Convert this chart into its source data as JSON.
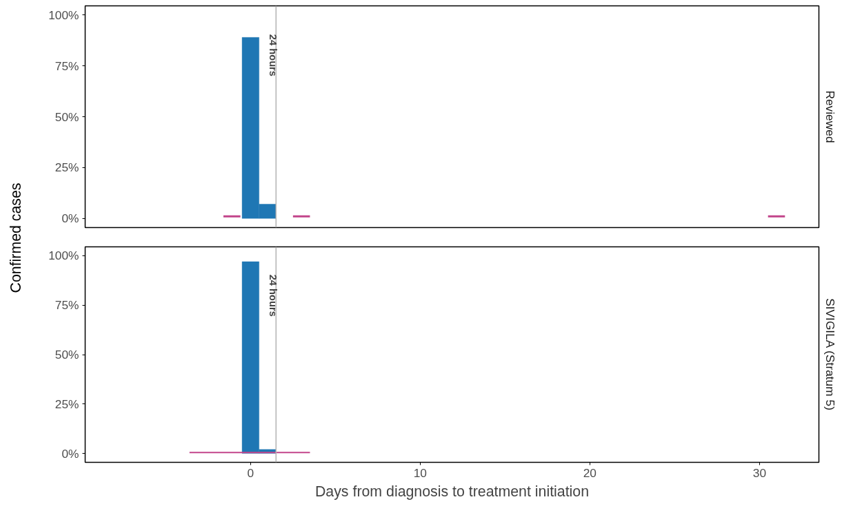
{
  "chart_data": [
    {
      "type": "histogram",
      "title": "Reviewed",
      "ylabel": "Confirmed cases",
      "bins": [
        -0.5,
        0.5,
        1.5
      ],
      "values": [
        89,
        7
      ],
      "color": "#1f77b4",
      "series": [
        {
          "type": "line",
          "color": "#c2448a",
          "x": [
            -1.6,
            -0.6,
            null,
            2.5,
            3.5,
            null,
            30.5,
            31.5
          ],
          "values": [
            1,
            1,
            null,
            1,
            1,
            null,
            1,
            1
          ]
        }
      ],
      "xlim": [
        -9.75,
        33.5
      ],
      "xticks": [
        0,
        10,
        20,
        30
      ],
      "ylim": [
        -4.5,
        104.5
      ],
      "yticks": [
        {
          "value": 0,
          "label": "0%"
        },
        {
          "value": 25,
          "label": "25%"
        },
        {
          "value": 50,
          "label": "50%"
        },
        {
          "value": 75,
          "label": "75%"
        },
        {
          "value": 100,
          "label": "100%"
        }
      ],
      "ref_lines": [
        {
          "axis": "x",
          "value": 1.5,
          "label": "24 hours",
          "color": "#b3b3b3"
        }
      ],
      "tick_labels": "y",
      "grid": false
    },
    {
      "type": "histogram",
      "title": "SIVIGILA (Stratum 5)",
      "xlabel": "Days from diagnosis to treatment initiation",
      "bins": [
        -0.5,
        0.5,
        1.5
      ],
      "values": [
        97,
        2
      ],
      "color": "#1f77b4",
      "series": [
        {
          "type": "line",
          "color": "#c2448a",
          "x": [
            -3.6,
            3.5
          ],
          "values": [
            0.5,
            0.5
          ]
        }
      ],
      "xlim": [
        -9.75,
        33.5
      ],
      "xticks": [
        0,
        10,
        20,
        30
      ],
      "ylim": [
        -4.5,
        104.5
      ],
      "yticks": [
        {
          "value": 0,
          "label": "0%"
        },
        {
          "value": 25,
          "label": "25%"
        },
        {
          "value": 50,
          "label": "50%"
        },
        {
          "value": 75,
          "label": "75%"
        },
        {
          "value": 100,
          "label": "100%"
        }
      ],
      "ref_lines": [
        {
          "axis": "x",
          "value": 1.5,
          "label": "24 hours",
          "color": "#b3b3b3"
        }
      ],
      "grid": false
    }
  ]
}
